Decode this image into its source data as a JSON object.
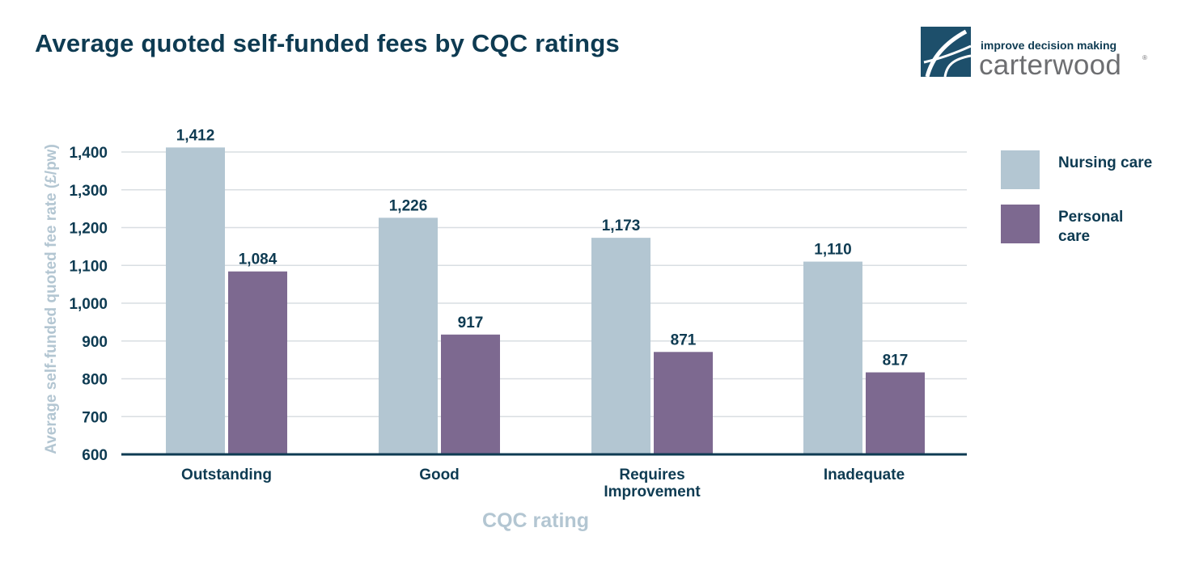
{
  "title": "Average quoted self-funded fees by CQC ratings",
  "logo": {
    "tagline": "improve decision making",
    "brand": "carterwood",
    "reg": "®"
  },
  "colors": {
    "nursing": "#b3c6d2",
    "personal": "#7d6990",
    "text_dark": "#0e3b52",
    "axis_title": "#b3c6d2",
    "grid": "#d9dee2"
  },
  "legend": [
    {
      "label": "Nursing care"
    },
    {
      "label": "Personal care"
    }
  ],
  "chart_data": {
    "type": "bar",
    "title": "Average quoted self-funded fees by CQC ratings",
    "xlabel": "CQC rating",
    "ylabel": "Average self-funded quoted fee rate (£/pw)",
    "categories": [
      [
        "Outstanding"
      ],
      [
        "Good"
      ],
      [
        "Requires",
        "Improvement"
      ],
      [
        "Inadequate"
      ]
    ],
    "series": [
      {
        "name": "Nursing care",
        "values": [
          1412,
          1226,
          1173,
          1110
        ],
        "labels": [
          "1,412",
          "1,226",
          "1,173",
          "1,110"
        ]
      },
      {
        "name": "Personal care",
        "values": [
          1084,
          917,
          871,
          817
        ],
        "labels": [
          "1,084",
          "917",
          "871",
          "817"
        ]
      }
    ],
    "ylim": [
      600,
      1400
    ],
    "yticks": [
      600,
      700,
      800,
      900,
      1000,
      1100,
      1200,
      1300,
      1400
    ],
    "ytick_labels": [
      "600",
      "700",
      "800",
      "900",
      "1,000",
      "1,100",
      "1,200",
      "1,300",
      "1,400"
    ],
    "grid": true,
    "legend_position": "right"
  }
}
